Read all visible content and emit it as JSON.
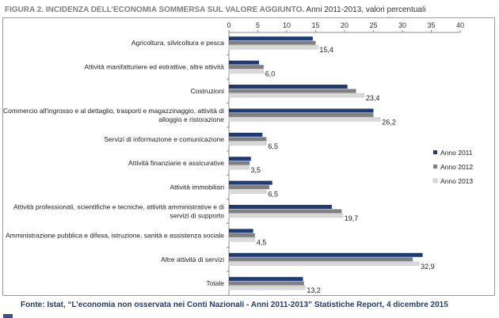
{
  "title": {
    "main": "FIGURA 2. INCIDENZA DELL’ECONOMIA SOMMERSA SUL VALORE AGGIUNTO.",
    "sub": "Anni 2011-2013, valori percentuali"
  },
  "footer": {
    "text": "Fonte: Istat, “L’economia non osservata nei Conti Nazionali - Anni 2011-2013”  Statistiche Report, 4 dicembre 2015"
  },
  "chart_data": {
    "type": "bar",
    "orientation": "horizontal",
    "categories": [
      [
        "Agricoltura, silvicoltura e pesca"
      ],
      [
        "Attività manifatturiere ed estrattive, altre attività"
      ],
      [
        "Costruzioni"
      ],
      [
        "Commercio all'ingrosso e al dettaglio, trasporti e magazzinaggio, attività di",
        "alloggio e ristorazione"
      ],
      [
        "Servizi di informazione e comunicazione"
      ],
      [
        "Attività finanziarie e assicurative"
      ],
      [
        "Attività immobiliari"
      ],
      [
        "Attività professionali, scientifiche e tecniche, attività amministrative e di",
        "servizi di supporto"
      ],
      [
        "Amministrazione pubblica e difesa, istruzione, sanità e assistenza sociale"
      ],
      [
        "Altre attività di servizi"
      ],
      [
        "Totale"
      ]
    ],
    "series": [
      {
        "name": "Anno 2011",
        "color": "#1f3b73",
        "values": [
          14.5,
          5.2,
          20.5,
          25.0,
          5.8,
          3.8,
          7.5,
          17.8,
          4.2,
          33.5,
          12.8
        ]
      },
      {
        "name": "Anno 2012",
        "color": "#808080",
        "values": [
          15.0,
          6.0,
          22.0,
          25.0,
          6.5,
          3.6,
          7.0,
          19.5,
          4.5,
          31.8,
          13.0
        ]
      },
      {
        "name": "Anno 2013",
        "color": "#d9d9d9",
        "values": [
          15.4,
          6.0,
          23.4,
          26.2,
          6.5,
          3.5,
          6.5,
          19.7,
          4.5,
          32.9,
          13.2
        ]
      }
    ],
    "data_labels": [
      "15,4",
      "6,0",
      "23,4",
      "26,2",
      "6,5",
      "3,5",
      "6,5",
      "19,7",
      "4,5",
      "32,9",
      "13,2"
    ],
    "x_ticks": [
      "0",
      "5",
      "10",
      "15",
      "20",
      "25",
      "30",
      "35",
      "40"
    ],
    "xlim": [
      0,
      40
    ],
    "xlabel": "",
    "ylabel": "",
    "grid": false,
    "legend_position": "right"
  }
}
